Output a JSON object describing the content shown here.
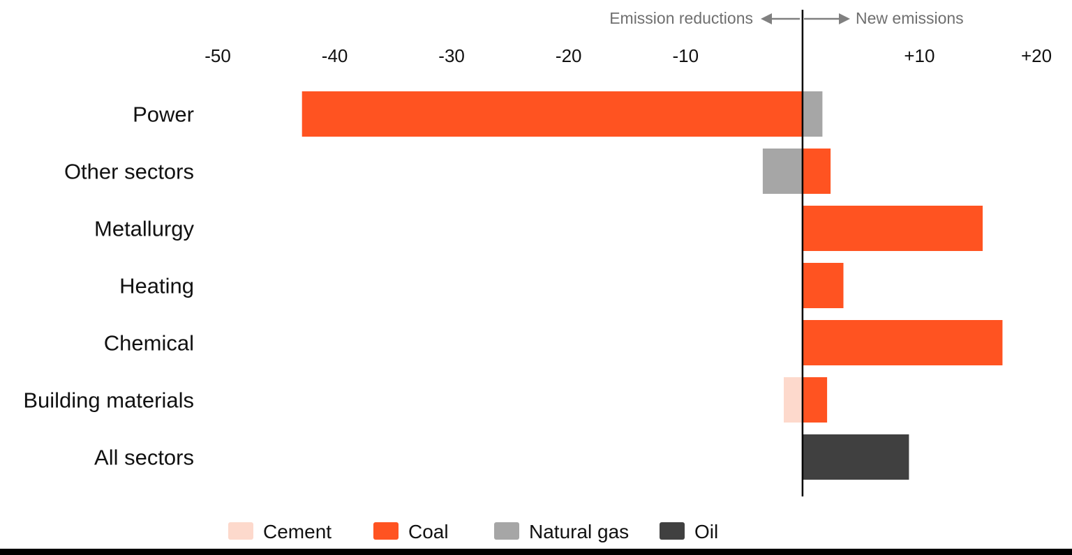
{
  "chart_data": {
    "type": "bar",
    "orientation": "horizontal",
    "stacked": true,
    "title": "",
    "xlabel": "",
    "ylabel": "",
    "xlim": [
      -50,
      20
    ],
    "grid": false,
    "legend_position": "bottom",
    "direction_labels": {
      "left": "Emission reductions",
      "right": "New emissions"
    },
    "ticks": [
      {
        "value": -50,
        "label": "-50"
      },
      {
        "value": -40,
        "label": "-40"
      },
      {
        "value": -30,
        "label": "-30"
      },
      {
        "value": -20,
        "label": "-20"
      },
      {
        "value": -10,
        "label": "-10"
      },
      {
        "value": 10,
        "label": "+10"
      },
      {
        "value": 20,
        "label": "+20"
      }
    ],
    "categories": [
      "Power",
      "Other sectors",
      "Metallurgy",
      "Heating",
      "Chemical",
      "Building materials",
      "All sectors"
    ],
    "series": [
      {
        "name": "Cement",
        "color": "#fdd9cc",
        "values": [
          0,
          0,
          0,
          0,
          0,
          -1.6,
          0
        ]
      },
      {
        "name": "Coal",
        "color": "#ff5321",
        "values": [
          -42.8,
          2.4,
          15.4,
          3.5,
          17.1,
          2.1,
          0
        ]
      },
      {
        "name": "Natural gas",
        "color": "#a6a6a6",
        "values": [
          1.7,
          -3.4,
          0,
          0,
          0,
          0,
          0
        ]
      },
      {
        "name": "Oil",
        "color": "#404040",
        "values": [
          0,
          0,
          0,
          0,
          0,
          0,
          9.1
        ]
      }
    ]
  }
}
